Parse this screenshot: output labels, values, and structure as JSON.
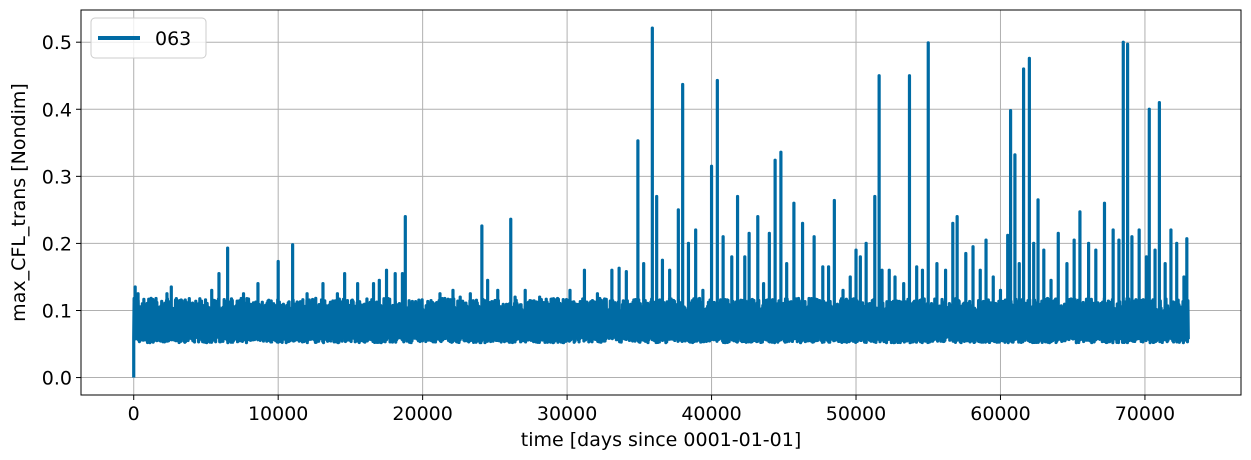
{
  "chart_data": {
    "type": "line",
    "xlabel": "time [days since 0001-01-01]",
    "ylabel": "max_CFL_trans [Nondim]",
    "xlim": [
      -3650,
      76650
    ],
    "ylim": [
      -0.026,
      0.548
    ],
    "xticks": [
      0,
      10000,
      20000,
      30000,
      40000,
      50000,
      60000,
      70000
    ],
    "xtick_labels": [
      "0",
      "10000",
      "20000",
      "30000",
      "40000",
      "50000",
      "60000",
      "70000"
    ],
    "yticks": [
      0.0,
      0.1,
      0.2,
      0.3,
      0.4,
      0.5
    ],
    "ytick_labels": [
      "0.0",
      "0.1",
      "0.2",
      "0.3",
      "0.4",
      "0.5"
    ],
    "grid": true,
    "legend_position": "upper-left",
    "series": [
      {
        "name": "063",
        "color": "#006ba4",
        "x_range": [
          0,
          73000
        ],
        "baseline": 0.08,
        "band_low": 0.055,
        "band_high": 0.105,
        "start_point": [
          0,
          0.0
        ],
        "peaks": [
          [
            100,
            0.135
          ],
          [
            300,
            0.125
          ],
          [
            600,
            0.11
          ],
          [
            1200,
            0.118
          ],
          [
            1600,
            0.112
          ],
          [
            2300,
            0.125
          ],
          [
            2600,
            0.135
          ],
          [
            3400,
            0.1
          ],
          [
            4500,
            0.11
          ],
          [
            5400,
            0.13
          ],
          [
            5900,
            0.155
          ],
          [
            6500,
            0.193
          ],
          [
            7600,
            0.125
          ],
          [
            8600,
            0.14
          ],
          [
            9400,
            0.11
          ],
          [
            10000,
            0.173
          ],
          [
            11000,
            0.198
          ],
          [
            12000,
            0.125
          ],
          [
            12600,
            0.118
          ],
          [
            13100,
            0.14
          ],
          [
            14100,
            0.125
          ],
          [
            14600,
            0.155
          ],
          [
            15500,
            0.14
          ],
          [
            16600,
            0.14
          ],
          [
            17000,
            0.145
          ],
          [
            17500,
            0.16
          ],
          [
            18100,
            0.155
          ],
          [
            18600,
            0.155
          ],
          [
            18800,
            0.24
          ],
          [
            19800,
            0.11
          ],
          [
            20800,
            0.105
          ],
          [
            21200,
            0.125
          ],
          [
            22100,
            0.13
          ],
          [
            22600,
            0.12
          ],
          [
            23300,
            0.125
          ],
          [
            24100,
            0.226
          ],
          [
            24500,
            0.145
          ],
          [
            25200,
            0.13
          ],
          [
            26100,
            0.236
          ],
          [
            26400,
            0.12
          ],
          [
            27100,
            0.13
          ],
          [
            28100,
            0.12
          ],
          [
            29100,
            0.11
          ],
          [
            30200,
            0.13
          ],
          [
            31200,
            0.16
          ],
          [
            32100,
            0.125
          ],
          [
            33100,
            0.16
          ],
          [
            33600,
            0.163
          ],
          [
            34100,
            0.158
          ],
          [
            34900,
            0.353
          ],
          [
            35300,
            0.17
          ],
          [
            35900,
            0.521
          ],
          [
            36200,
            0.27
          ],
          [
            36600,
            0.175
          ],
          [
            37100,
            0.16
          ],
          [
            37700,
            0.25
          ],
          [
            38000,
            0.437
          ],
          [
            38400,
            0.2
          ],
          [
            38900,
            0.22
          ],
          [
            39400,
            0.13
          ],
          [
            40000,
            0.315
          ],
          [
            40400,
            0.443
          ],
          [
            40800,
            0.21
          ],
          [
            41400,
            0.18
          ],
          [
            41800,
            0.27
          ],
          [
            42300,
            0.18
          ],
          [
            42600,
            0.215
          ],
          [
            43200,
            0.24
          ],
          [
            43600,
            0.14
          ],
          [
            44000,
            0.215
          ],
          [
            44400,
            0.324
          ],
          [
            44800,
            0.336
          ],
          [
            45200,
            0.17
          ],
          [
            45700,
            0.26
          ],
          [
            46300,
            0.23
          ],
          [
            47100,
            0.21
          ],
          [
            47700,
            0.165
          ],
          [
            48100,
            0.165
          ],
          [
            48500,
            0.264
          ],
          [
            49100,
            0.13
          ],
          [
            49600,
            0.15
          ],
          [
            50000,
            0.19
          ],
          [
            50300,
            0.18
          ],
          [
            50700,
            0.2
          ],
          [
            51300,
            0.27
          ],
          [
            51600,
            0.45
          ],
          [
            51800,
            0.16
          ],
          [
            52300,
            0.16
          ],
          [
            52700,
            0.15
          ],
          [
            53300,
            0.14
          ],
          [
            53700,
            0.45
          ],
          [
            54200,
            0.165
          ],
          [
            54600,
            0.16
          ],
          [
            55000,
            0.499
          ],
          [
            55600,
            0.17
          ],
          [
            56200,
            0.16
          ],
          [
            56700,
            0.23
          ],
          [
            57000,
            0.24
          ],
          [
            57600,
            0.185
          ],
          [
            58100,
            0.195
          ],
          [
            58600,
            0.16
          ],
          [
            59000,
            0.205
          ],
          [
            59500,
            0.15
          ],
          [
            60000,
            0.13
          ],
          [
            60500,
            0.212
          ],
          [
            60700,
            0.398
          ],
          [
            61000,
            0.332
          ],
          [
            61300,
            0.17
          ],
          [
            61600,
            0.46
          ],
          [
            62000,
            0.476
          ],
          [
            62300,
            0.2
          ],
          [
            62600,
            0.265
          ],
          [
            63000,
            0.19
          ],
          [
            63500,
            0.145
          ],
          [
            64000,
            0.215
          ],
          [
            64600,
            0.17
          ],
          [
            65100,
            0.205
          ],
          [
            65500,
            0.247
          ],
          [
            66100,
            0.2
          ],
          [
            66600,
            0.19
          ],
          [
            67200,
            0.26
          ],
          [
            67800,
            0.22
          ],
          [
            68200,
            0.205
          ],
          [
            68500,
            0.5
          ],
          [
            68800,
            0.497
          ],
          [
            69100,
            0.21
          ],
          [
            69600,
            0.22
          ],
          [
            70100,
            0.18
          ],
          [
            70300,
            0.4
          ],
          [
            70700,
            0.19
          ],
          [
            71000,
            0.41
          ],
          [
            71400,
            0.17
          ],
          [
            71800,
            0.22
          ],
          [
            72200,
            0.2
          ],
          [
            72700,
            0.15
          ],
          [
            72900,
            0.207
          ]
        ]
      }
    ]
  }
}
